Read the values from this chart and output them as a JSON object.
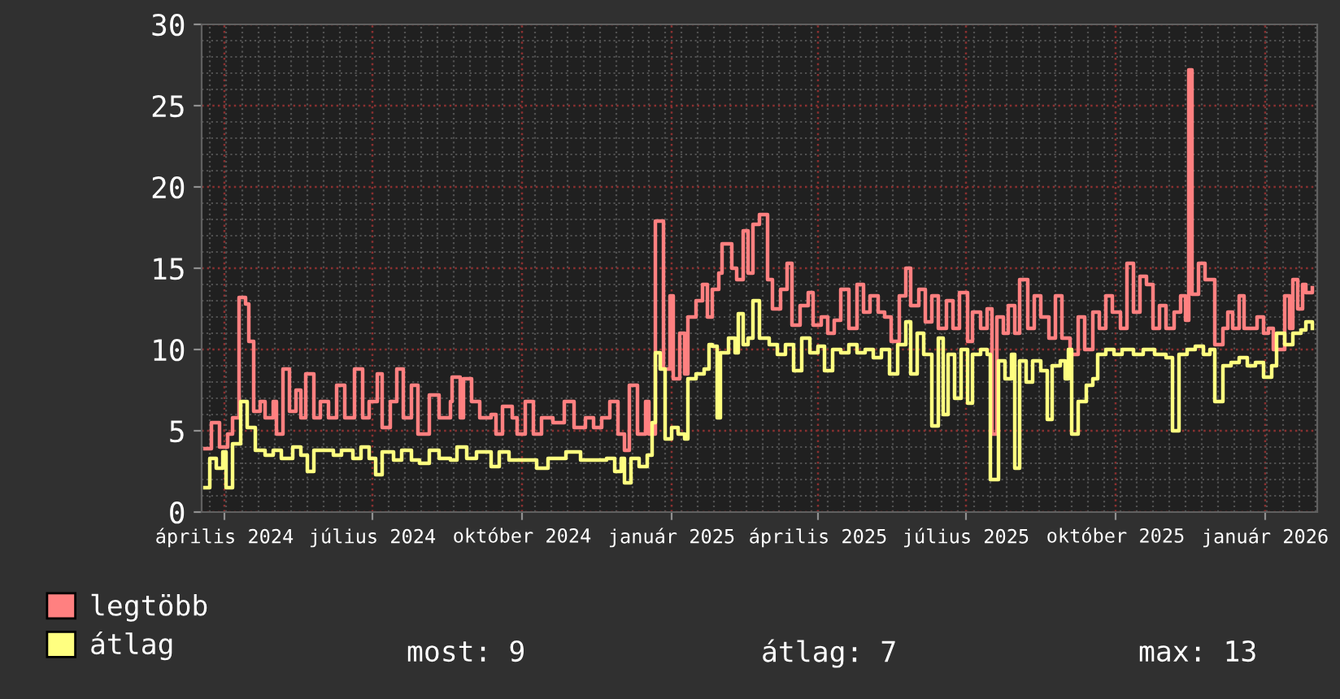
{
  "chart_data": {
    "type": "step",
    "xlim": [
      "2024-03-18",
      "2026-02-02"
    ],
    "ylim": [
      0,
      30
    ],
    "yticks": [
      0,
      5,
      10,
      15,
      20,
      25,
      30
    ],
    "xticks": [
      {
        "value": "2024-04-01",
        "label": "április 2024"
      },
      {
        "value": "2024-07-01",
        "label": "július 2024"
      },
      {
        "value": "2024-10-01",
        "label": "október 2024"
      },
      {
        "value": "2025-01-01",
        "label": "január 2025"
      },
      {
        "value": "2025-04-01",
        "label": "április 2025"
      },
      {
        "value": "2025-07-01",
        "label": "július 2025"
      },
      {
        "value": "2025-10-01",
        "label": "október 2025"
      },
      {
        "value": "2026-01-01",
        "label": "január 2026"
      }
    ],
    "grid": true,
    "legend": "bottom",
    "series": [
      {
        "name": "legtöbb",
        "color": "#ff8080",
        "x": [
          "2024-03-20",
          "2024-03-24",
          "2024-03-29",
          "2024-04-03",
          "2024-04-06",
          "2024-04-10",
          "2024-04-14",
          "2024-04-16",
          "2024-04-19",
          "2024-04-23",
          "2024-04-26",
          "2024-05-01",
          "2024-05-03",
          "2024-05-07",
          "2024-05-11",
          "2024-05-15",
          "2024-05-18",
          "2024-05-21",
          "2024-05-26",
          "2024-05-30",
          "2024-06-04",
          "2024-06-09",
          "2024-06-14",
          "2024-06-20",
          "2024-06-25",
          "2024-06-29",
          "2024-07-04",
          "2024-07-07",
          "2024-07-12",
          "2024-07-16",
          "2024-07-20",
          "2024-07-25",
          "2024-07-29",
          "2024-08-05",
          "2024-08-11",
          "2024-08-18",
          "2024-08-19",
          "2024-08-24",
          "2024-08-26",
          "2024-08-31",
          "2024-09-05",
          "2024-09-12",
          "2024-09-15",
          "2024-09-19",
          "2024-09-25",
          "2024-09-28",
          "2024-10-03",
          "2024-10-08",
          "2024-10-13",
          "2024-10-20",
          "2024-10-27",
          "2024-11-02",
          "2024-11-09",
          "2024-11-14",
          "2024-11-19",
          "2024-11-24",
          "2024-11-29",
          "2024-12-03",
          "2024-12-06",
          "2024-12-11",
          "2024-12-16",
          "2024-12-18",
          "2024-12-22",
          "2024-12-25",
          "2024-12-27",
          "2024-12-31",
          "2025-01-02",
          "2025-01-06",
          "2025-01-09",
          "2025-01-11",
          "2025-01-16",
          "2025-01-20",
          "2025-01-23",
          "2025-01-26",
          "2025-01-30",
          "2025-02-01",
          "2025-02-07",
          "2025-02-10",
          "2025-02-14",
          "2025-02-17",
          "2025-02-20",
          "2025-02-24",
          "2025-03-01",
          "2025-03-04",
          "2025-03-09",
          "2025-03-13",
          "2025-03-16",
          "2025-03-21",
          "2025-03-26",
          "2025-03-29",
          "2025-04-03",
          "2025-04-07",
          "2025-04-11",
          "2025-04-15",
          "2025-04-20",
          "2025-04-25",
          "2025-04-29",
          "2025-05-03",
          "2025-05-08",
          "2025-05-12",
          "2025-05-16",
          "2025-05-21",
          "2025-05-25",
          "2025-05-28",
          "2025-06-02",
          "2025-06-06",
          "2025-06-10",
          "2025-06-14",
          "2025-06-19",
          "2025-06-23",
          "2025-06-27",
          "2025-07-02",
          "2025-07-05",
          "2025-07-10",
          "2025-07-14",
          "2025-07-17",
          "2025-07-20",
          "2025-07-24",
          "2025-07-27",
          "2025-07-31",
          "2025-08-03",
          "2025-08-08",
          "2025-08-12",
          "2025-08-16",
          "2025-08-21",
          "2025-08-25",
          "2025-08-29",
          "2025-09-03",
          "2025-09-08",
          "2025-09-12",
          "2025-09-17",
          "2025-09-21",
          "2025-09-25",
          "2025-09-29",
          "2025-10-04",
          "2025-10-08",
          "2025-10-12",
          "2025-10-16",
          "2025-10-20",
          "2025-10-24",
          "2025-10-28",
          "2025-11-01",
          "2025-11-06",
          "2025-11-10",
          "2025-11-13",
          "2025-11-15",
          "2025-11-17",
          "2025-11-21",
          "2025-11-25",
          "2025-11-28",
          "2025-12-01",
          "2025-12-06",
          "2025-12-09",
          "2025-12-12",
          "2025-12-16",
          "2025-12-19",
          "2025-12-22",
          "2025-12-27",
          "2025-12-31",
          "2026-01-03",
          "2026-01-06",
          "2026-01-10",
          "2026-01-13",
          "2026-01-16",
          "2026-01-18",
          "2026-01-21",
          "2026-01-24",
          "2026-01-26",
          "2026-01-30"
        ],
        "values": [
          3.9,
          5.5,
          4.0,
          4.8,
          5.8,
          13.2,
          12.8,
          10.5,
          6.2,
          6.8,
          5.8,
          6.8,
          4.8,
          8.8,
          6.2,
          7.5,
          5.8,
          8.5,
          5.8,
          6.8,
          5.8,
          7.8,
          5.8,
          8.8,
          5.8,
          6.8,
          8.5,
          5.2,
          6.8,
          8.8,
          5.8,
          7.8,
          4.8,
          7.2,
          5.8,
          6.8,
          8.3,
          5.8,
          8.2,
          6.8,
          5.8,
          6.0,
          4.8,
          6.5,
          5.8,
          4.8,
          6.8,
          4.8,
          5.8,
          5.5,
          6.8,
          5.2,
          5.8,
          5.2,
          5.8,
          6.8,
          4.8,
          3.8,
          7.8,
          4.8,
          6.8,
          4.8,
          17.9,
          17.9,
          8.8,
          13.3,
          8.2,
          11.0,
          8.5,
          12.0,
          13.0,
          14.0,
          12.0,
          13.7,
          14.7,
          16.5,
          15.0,
          14.3,
          17.3,
          14.7,
          17.7,
          18.3,
          14.3,
          12.5,
          13.7,
          15.3,
          11.5,
          12.7,
          13.5,
          11.5,
          12.0,
          11.0,
          11.8,
          13.7,
          11.3,
          14.0,
          12.3,
          13.3,
          12.3,
          12.0,
          10.5,
          13.3,
          15.0,
          12.7,
          13.7,
          11.7,
          13.3,
          11.3,
          13.0,
          11.3,
          13.5,
          10.5,
          12.3,
          11.3,
          12.5,
          4.8,
          12.0,
          11.0,
          12.7,
          11.0,
          14.3,
          11.3,
          13.3,
          12.0,
          10.7,
          13.3,
          10.7,
          9.7,
          12.0,
          10.0,
          12.3,
          11.3,
          13.3,
          12.3,
          11.3,
          15.3,
          12.3,
          14.5,
          14.0,
          11.3,
          12.7,
          11.3,
          12.3,
          13.3,
          11.8,
          27.2,
          13.4,
          15.3,
          14.3,
          14.3,
          10.3,
          11.3,
          12.3,
          11.3,
          13.3,
          11.3,
          11.3,
          12.0,
          11.0,
          11.3,
          10.0,
          10.0,
          13.3,
          11.3,
          14.3,
          12.5,
          14.0,
          13.5,
          13.8
        ]
      },
      {
        "name": "átlag",
        "color": "#ffff80",
        "x": [
          "2024-03-20",
          "2024-03-23",
          "2024-03-27",
          "2024-03-31",
          "2024-04-02",
          "2024-04-06",
          "2024-04-11",
          "2024-04-15",
          "2024-04-20",
          "2024-04-26",
          "2024-05-01",
          "2024-05-06",
          "2024-05-13",
          "2024-05-18",
          "2024-05-22",
          "2024-05-26",
          "2024-06-02",
          "2024-06-07",
          "2024-06-12",
          "2024-06-19",
          "2024-06-24",
          "2024-06-29",
          "2024-07-03",
          "2024-07-07",
          "2024-07-14",
          "2024-07-19",
          "2024-07-25",
          "2024-07-30",
          "2024-08-05",
          "2024-08-11",
          "2024-08-18",
          "2024-08-22",
          "2024-08-28",
          "2024-09-03",
          "2024-09-12",
          "2024-09-17",
          "2024-09-23",
          "2024-10-02",
          "2024-10-10",
          "2024-10-17",
          "2024-10-28",
          "2024-11-06",
          "2024-11-16",
          "2024-11-22",
          "2024-11-27",
          "2024-12-01",
          "2024-12-03",
          "2024-12-07",
          "2024-12-12",
          "2024-12-17",
          "2024-12-20",
          "2024-12-22",
          "2024-12-25",
          "2024-12-28",
          "2025-01-01",
          "2025-01-05",
          "2025-01-09",
          "2025-01-11",
          "2025-01-16",
          "2025-01-21",
          "2025-01-24",
          "2025-01-26",
          "2025-01-29",
          "2025-01-31",
          "2025-02-05",
          "2025-02-09",
          "2025-02-11",
          "2025-02-14",
          "2025-02-17",
          "2025-02-20",
          "2025-02-24",
          "2025-03-02",
          "2025-03-07",
          "2025-03-12",
          "2025-03-17",
          "2025-03-22",
          "2025-03-27",
          "2025-04-01",
          "2025-04-05",
          "2025-04-10",
          "2025-04-15",
          "2025-04-20",
          "2025-04-25",
          "2025-04-30",
          "2025-05-05",
          "2025-05-10",
          "2025-05-15",
          "2025-05-20",
          "2025-05-25",
          "2025-05-28",
          "2025-06-01",
          "2025-06-05",
          "2025-06-10",
          "2025-06-14",
          "2025-06-17",
          "2025-06-20",
          "2025-06-24",
          "2025-06-28",
          "2025-07-02",
          "2025-07-05",
          "2025-07-10",
          "2025-07-14",
          "2025-07-16",
          "2025-07-19",
          "2025-07-21",
          "2025-07-25",
          "2025-07-29",
          "2025-07-31",
          "2025-08-03",
          "2025-08-07",
          "2025-08-11",
          "2025-08-16",
          "2025-08-20",
          "2025-08-23",
          "2025-08-28",
          "2025-08-31",
          "2025-09-02",
          "2025-09-04",
          "2025-09-08",
          "2025-09-13",
          "2025-09-17",
          "2025-09-20",
          "2025-09-25",
          "2025-09-30",
          "2025-10-05",
          "2025-10-12",
          "2025-10-18",
          "2025-10-25",
          "2025-11-01",
          "2025-11-05",
          "2025-11-09",
          "2025-11-14",
          "2025-11-19",
          "2025-11-24",
          "2025-11-28",
          "2025-12-01",
          "2025-12-06",
          "2025-12-11",
          "2025-12-16",
          "2025-12-21",
          "2025-12-26",
          "2025-12-31",
          "2026-01-05",
          "2026-01-08",
          "2026-01-13",
          "2026-01-18",
          "2026-01-23",
          "2026-01-26",
          "2026-01-30"
        ],
        "values": [
          1.5,
          3.3,
          2.7,
          3.7,
          1.5,
          4.2,
          6.8,
          5.2,
          3.8,
          3.5,
          3.8,
          3.3,
          4.0,
          3.5,
          2.5,
          3.8,
          3.8,
          3.5,
          3.8,
          3.3,
          4.0,
          3.3,
          2.3,
          3.7,
          3.2,
          3.8,
          3.2,
          3.0,
          3.8,
          3.3,
          3.2,
          4.0,
          3.3,
          3.7,
          2.8,
          3.7,
          3.2,
          3.2,
          2.7,
          3.3,
          3.7,
          3.2,
          3.2,
          3.3,
          2.5,
          3.3,
          1.8,
          3.3,
          2.8,
          3.5,
          5.5,
          9.8,
          8.8,
          4.5,
          5.2,
          4.8,
          4.5,
          8.2,
          8.5,
          8.8,
          10.3,
          10.2,
          5.8,
          9.8,
          10.7,
          9.8,
          12.2,
          10.3,
          10.7,
          13.0,
          10.7,
          10.3,
          9.7,
          10.3,
          8.7,
          10.7,
          9.8,
          10.2,
          8.7,
          10.0,
          9.8,
          10.3,
          9.8,
          10.0,
          9.5,
          10.0,
          8.5,
          10.3,
          11.7,
          8.5,
          11.0,
          9.7,
          5.3,
          10.7,
          6.0,
          9.7,
          7.0,
          10.0,
          6.7,
          9.7,
          10.0,
          9.7,
          2.0,
          2.0,
          9.3,
          8.2,
          9.7,
          2.7,
          9.3,
          8.0,
          9.3,
          8.7,
          5.7,
          9.0,
          9.3,
          8.2,
          10.0,
          4.8,
          6.8,
          7.8,
          8.2,
          9.7,
          10.0,
          9.7,
          10.0,
          9.7,
          10.0,
          9.7,
          9.5,
          5.0,
          9.7,
          10.0,
          10.2,
          9.7,
          10.0,
          6.8,
          9.0,
          9.2,
          9.5,
          9.0,
          9.2,
          8.3,
          9.0,
          11.0,
          10.3,
          11.0,
          11.2,
          11.7,
          11.3
        ]
      }
    ],
    "annotations": [
      "most: 9",
      "átlag: 7",
      "max: 13"
    ]
  }
}
